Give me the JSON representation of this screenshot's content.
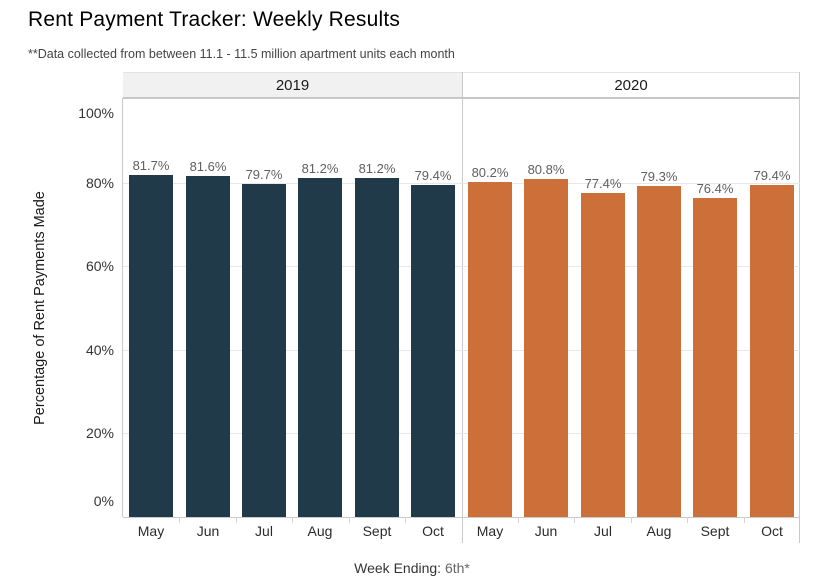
{
  "title": "Rent Payment Tracker: Weekly Results",
  "subtitle": "**Data collected from between 11.1 - 11.5 million apartment units each month",
  "chart_data": {
    "type": "bar",
    "title": "Rent Payment Tracker: Weekly Results",
    "subtitle": "**Data collected from between 11.1 - 11.5 million apartment units each month",
    "categories": [
      "May",
      "Jun",
      "Jul",
      "Aug",
      "Sept",
      "Oct"
    ],
    "series": [
      {
        "name": "2019",
        "color": "#203a49",
        "values": [
          81.7,
          81.6,
          79.7,
          81.2,
          81.2,
          79.4
        ]
      },
      {
        "name": "2020",
        "color": "#cd6f39",
        "values": [
          80.2,
          80.8,
          77.4,
          79.3,
          76.4,
          79.4
        ]
      }
    ],
    "value_label_suffix": "%",
    "ylabel": "Percentage of Rent Payments Made",
    "xlabel_prefix": "Week Ending:",
    "xlabel_value": "6th*",
    "ylim": [
      0,
      100
    ],
    "yticks": [
      0,
      20,
      40,
      60,
      80,
      100
    ],
    "ytick_suffix": "%",
    "grid": true,
    "legend_position": "column-headers-top"
  },
  "colors": {
    "bar_2019": "#203a49",
    "bar_2020": "#cd6f39",
    "band_2019_bg": "#f1f1f1",
    "band_2020_bg": "#ffffff",
    "gridline": "#e7e7e7",
    "axis_line": "#c9c9c9",
    "value_label": "#5f5f5f"
  }
}
